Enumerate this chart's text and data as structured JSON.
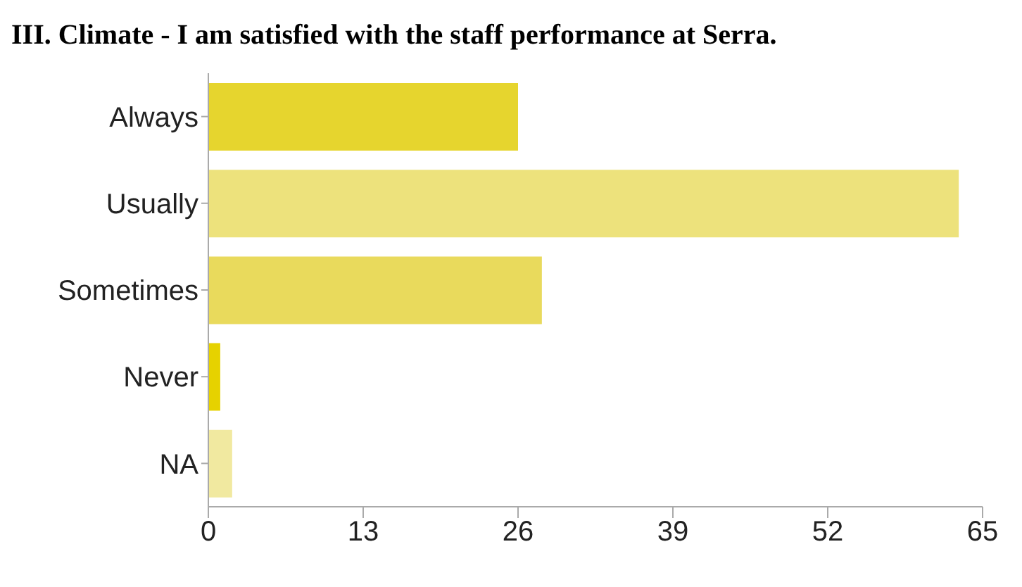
{
  "chart_data": {
    "type": "bar",
    "orientation": "horizontal",
    "title": "III. Climate - I am satisfied with the staff performance at Serra.",
    "categories": [
      "Always",
      "Usually",
      "Sometimes",
      "Never",
      "NA"
    ],
    "values": [
      26,
      63,
      28,
      1,
      2
    ],
    "colors": [
      "#e6d52e",
      "#ede27c",
      "#e9da5c",
      "#e6d200",
      "#f1e9a0"
    ],
    "xlim": [
      0,
      65
    ],
    "xticks": [
      0,
      13,
      26,
      39,
      52,
      65
    ]
  }
}
